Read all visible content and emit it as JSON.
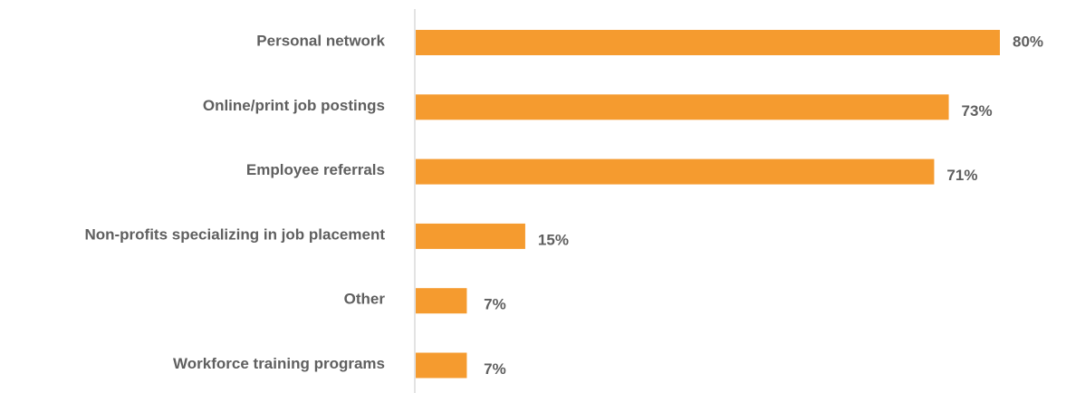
{
  "chart_data": {
    "type": "bar",
    "orientation": "horizontal",
    "categories": [
      "Personal network",
      "Online/print job postings",
      "Employee referrals",
      "Non-profits specializing in job placement",
      "Other",
      "Workforce training programs"
    ],
    "values": [
      80,
      73,
      71,
      15,
      7,
      7
    ],
    "value_labels": [
      "80%",
      "73%",
      "71%",
      "15%",
      "7%",
      "7%"
    ],
    "value_unit": "%",
    "xlim": [
      0,
      80
    ],
    "grid": false,
    "legend": "none",
    "colors": {
      "bar": "#f59b2f",
      "axis": "#e3e3e3",
      "text": "#5f5f5f"
    }
  }
}
